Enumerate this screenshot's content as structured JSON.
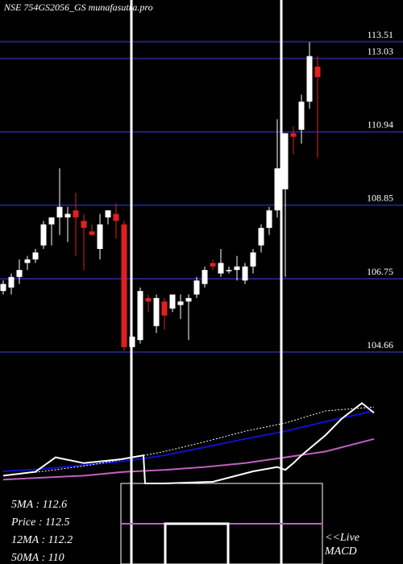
{
  "chart_data": {
    "type": "candlestick",
    "title": "NSE 754GS2056_GS munafasutra.pro",
    "ylim": [
      103.9,
      114.7
    ],
    "yticks": [
      113.51,
      113.03,
      110.94,
      108.85,
      106.75,
      104.66
    ],
    "grid": true,
    "grid_color": "#22227a",
    "up_color": "#ffffff",
    "down_color": "#e02020",
    "open": [
      106.4,
      106.5,
      106.8,
      107.2,
      107.3,
      107.7,
      108.3,
      108.5,
      108.5,
      108.7,
      108.4,
      108.1,
      107.6,
      108.5,
      108.6,
      108.3,
      104.8,
      105.0,
      106.2,
      105.4,
      106.1,
      105.9,
      106.0,
      106.1,
      106.3,
      106.6,
      107.2,
      106.9,
      107.0,
      107.0,
      106.7,
      107.1,
      107.7,
      108.2,
      108.7,
      109.3,
      110.9,
      111.0,
      111.8,
      112.8
    ],
    "high": [
      106.7,
      106.9,
      107.3,
      107.4,
      107.6,
      108.4,
      108.5,
      109.9,
      108.8,
      109.2,
      108.6,
      108.3,
      108.6,
      108.7,
      108.9,
      108.4,
      106.3,
      106.5,
      106.3,
      106.3,
      106.2,
      106.3,
      106.3,
      106.3,
      106.8,
      107.1,
      107.3,
      107.6,
      107.1,
      107.4,
      107.2,
      107.6,
      108.3,
      108.8,
      111.3,
      110.9,
      111.1,
      112.0,
      113.5,
      113.1
    ],
    "low": [
      106.3,
      106.3,
      106.6,
      107.0,
      107.2,
      107.6,
      107.7,
      108.0,
      107.8,
      107.4,
      107.0,
      108.0,
      107.3,
      108.3,
      107.9,
      104.7,
      104.7,
      104.9,
      105.8,
      105.2,
      105.3,
      105.8,
      105.6,
      105.0,
      106.2,
      106.5,
      107.0,
      106.8,
      106.9,
      106.7,
      106.6,
      106.9,
      107.5,
      108.0,
      108.5,
      106.8,
      110.3,
      110.6,
      111.6,
      110.2
    ],
    "close": [
      106.6,
      106.8,
      107.0,
      107.3,
      107.5,
      108.3,
      108.5,
      108.8,
      108.6,
      108.5,
      108.2,
      108.0,
      108.3,
      108.7,
      108.4,
      104.8,
      105.1,
      106.4,
      106.1,
      106.2,
      105.7,
      106.3,
      106.1,
      106.2,
      106.7,
      107.0,
      107.1,
      107.2,
      107.0,
      107.1,
      107.1,
      107.5,
      108.2,
      108.7,
      109.9,
      110.9,
      110.8,
      111.8,
      113.1,
      112.5
    ],
    "indicators": {
      "ylim": [
        0,
        100
      ],
      "series": [
        {
          "color": "#1010d0",
          "x": [
            0,
            5,
            10,
            15,
            20,
            25,
            30,
            35,
            40,
            46
          ],
          "values": [
            12.5,
            15,
            19,
            23,
            29,
            37.5,
            46,
            54,
            64,
            75
          ]
        },
        {
          "color": "#c060c0",
          "x": [
            0,
            5,
            10,
            15,
            20,
            25,
            30,
            35,
            40,
            46
          ],
          "values": [
            4,
            6,
            8,
            12,
            14,
            17,
            21,
            27,
            33,
            46
          ]
        },
        {
          "color": "#ffffff",
          "dashed": true,
          "x": [
            0,
            5,
            10,
            15,
            20,
            25,
            30,
            35,
            40,
            46
          ],
          "values": [
            8,
            12.5,
            18,
            25,
            33,
            43,
            54,
            62.5,
            75,
            79
          ]
        },
        {
          "color": "#ffffff",
          "x": [
            0,
            4,
            6.5,
            10,
            14.6,
            17.4,
            17.6,
            20,
            26,
            31,
            34,
            35,
            36,
            37,
            40,
            42,
            44.5,
            46
          ],
          "values": [
            8,
            12,
            27,
            21,
            25,
            29,
            0,
            0,
            1.7,
            12.5,
            17,
            14,
            21,
            29,
            50,
            67,
            83,
            73
          ]
        }
      ]
    },
    "info": [
      "5MA : 112.6",
      "Price : 112.5",
      "12MA : 112.2",
      "50MA : 110"
    ],
    "live_label": [
      "<<Live",
      "MACD"
    ]
  }
}
